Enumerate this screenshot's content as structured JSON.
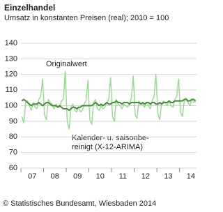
{
  "chart_data": {
    "type": "line",
    "title": "Einzelhandel",
    "subtitle": "Umsatz in konstanten Preisen (real); 2010 = 100",
    "annotations": [
      "Originalwert",
      "Kalender- u. saisonbe-",
      "reinigt (X-12-ARIMA)"
    ],
    "source": "© Statistisches Bundesamt, Wiesbaden 2014",
    "categories": [
      null,
      null,
      null,
      null,
      null,
      null,
      "07",
      null,
      null,
      null,
      null,
      null,
      null,
      null,
      null,
      null,
      null,
      null,
      "08",
      null,
      null,
      null,
      null,
      null,
      null,
      null,
      null,
      null,
      null,
      null,
      "09",
      null,
      null,
      null,
      null,
      null,
      null,
      null,
      null,
      null,
      null,
      null,
      "10",
      null,
      null,
      null,
      null,
      null,
      null,
      null,
      null,
      null,
      null,
      null,
      "11",
      null,
      null,
      null,
      null,
      null,
      null,
      null,
      null,
      null,
      null,
      null,
      "12",
      null,
      null,
      null,
      null,
      null,
      null,
      null,
      null,
      null,
      null,
      null,
      "13",
      null,
      null,
      null,
      null,
      null,
      null,
      null,
      null,
      null,
      null,
      null,
      "14",
      null,
      null
    ],
    "series": [
      {
        "name": "Originalwert",
        "color": "#93dc8c",
        "values": [
          93,
          89,
          102,
          103,
          100,
          97,
          102,
          99,
          98,
          104,
          106,
          117,
          94,
          91,
          104,
          102,
          101,
          98,
          101,
          99,
          99,
          103,
          104,
          122,
          90,
          85,
          99,
          101,
          97,
          96,
          99,
          96,
          97,
          101,
          103,
          116,
          91,
          88,
          102,
          104,
          98,
          97,
          100,
          98,
          99,
          102,
          104,
          118,
          93,
          90,
          104,
          101,
          100,
          98,
          101,
          100,
          99,
          101,
          105,
          119,
          94,
          92,
          103,
          101,
          101,
          99,
          102,
          100,
          98,
          103,
          106,
          120,
          95,
          91,
          101,
          103,
          102,
          100,
          103,
          100,
          99,
          104,
          106,
          117,
          96,
          93,
          103,
          105,
          102,
          100,
          104,
          102,
          103
        ]
      },
      {
        "name": "Kalender- u. saisonbereinigt (X-12-ARIMA)",
        "color": "#4a8a3a",
        "values": [
          103,
          104,
          103,
          102,
          101,
          100,
          101,
          101,
          101,
          102,
          101,
          100,
          101,
          102,
          102,
          101,
          100,
          100,
          100,
          99,
          100,
          99,
          98,
          98,
          98,
          97,
          98,
          99,
          99,
          98,
          99,
          99,
          100,
          100,
          100,
          100,
          100,
          100,
          101,
          102,
          101,
          100,
          101,
          100,
          101,
          102,
          101,
          101,
          102,
          102,
          103,
          102,
          102,
          101,
          102,
          102,
          102,
          101,
          102,
          102,
          102,
          102,
          102,
          101,
          102,
          101,
          102,
          102,
          101,
          102,
          102,
          101,
          101,
          102,
          101,
          102,
          102,
          102,
          103,
          102,
          102,
          103,
          103,
          103,
          103,
          103,
          104,
          104,
          103,
          103,
          104,
          104,
          103
        ]
      }
    ],
    "ylim": [
      60,
      140
    ],
    "yticks": [
      60,
      70,
      80,
      90,
      100,
      110,
      120,
      130,
      140
    ],
    "grid": true
  }
}
